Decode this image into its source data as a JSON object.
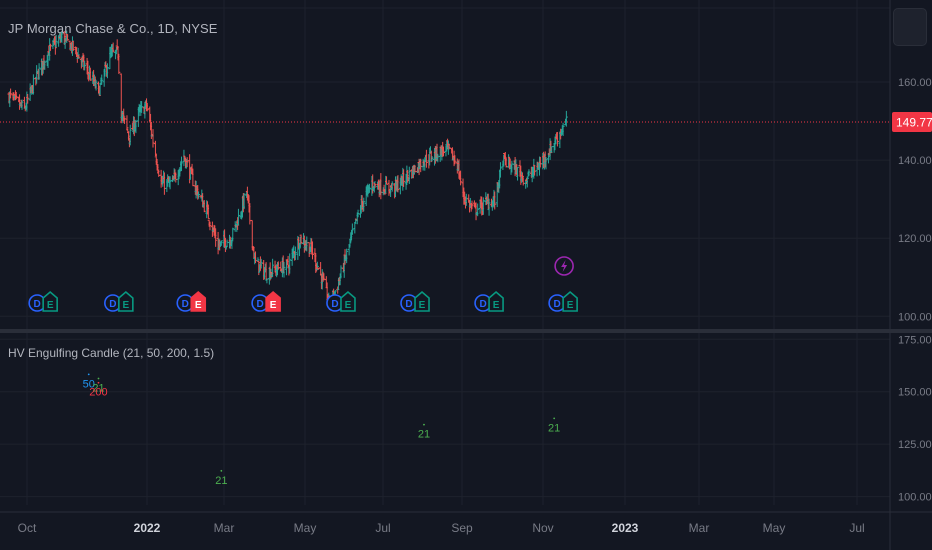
{
  "title": "JP Morgan Chase & Co., 1D, NYSE",
  "indicator_title": "HV Engulfing Candle (21, 50, 200, 1.5)",
  "colors": {
    "bg": "#131722",
    "grid": "#1e222d",
    "up": "#26a69a",
    "down": "#ef5350",
    "price_line": "#f23645",
    "axis_text": "#787b86",
    "earn_blue": "#2962ff",
    "earn_green": "#089981",
    "earn_red": "#f23645",
    "flash": "#9c27b0",
    "sig21": "#4caf50",
    "sig50": "#2196f3",
    "sig200": "#f23645"
  },
  "chart_data": [
    {
      "type": "ohlc",
      "x_axis": {
        "ticks": [
          {
            "label": "Oct",
            "bold": false
          },
          {
            "label": "2022",
            "bold": true
          },
          {
            "label": "Mar",
            "bold": false
          },
          {
            "label": "May",
            "bold": false
          },
          {
            "label": "Jul",
            "bold": false
          },
          {
            "label": "Sep",
            "bold": false
          },
          {
            "label": "Nov",
            "bold": false
          },
          {
            "label": "2023",
            "bold": true
          },
          {
            "label": "Mar",
            "bold": false
          },
          {
            "label": "May",
            "bold": false
          },
          {
            "label": "Jul",
            "bold": false
          }
        ]
      },
      "y_axis": {
        "ticks": [
          "160.00",
          "140.00",
          "120.00",
          "100.00"
        ],
        "range": [
          97,
          181
        ]
      },
      "last_price": "149.77",
      "close_path": [
        [
          "2021-09-01",
          156.5
        ],
        [
          "2021-09-20",
          153
        ],
        [
          "2021-10-05",
          161.5
        ],
        [
          "2021-10-20",
          168
        ],
        [
          "2021-11-05",
          171.5
        ],
        [
          "2021-11-20",
          168.5
        ],
        [
          "2021-12-06",
          163
        ],
        [
          "2021-12-20",
          157.5
        ],
        [
          "2022-01-04",
          167
        ],
        [
          "2022-01-13",
          167.5
        ],
        [
          "2022-01-17",
          152
        ],
        [
          "2022-01-27",
          146
        ],
        [
          "2022-02-08",
          152
        ],
        [
          "2022-02-17",
          154
        ],
        [
          "2022-02-24",
          146
        ],
        [
          "2022-03-07",
          134
        ],
        [
          "2022-03-21",
          134
        ],
        [
          "2022-04-04",
          141
        ],
        [
          "2022-04-18",
          133
        ],
        [
          "2022-05-02",
          127
        ],
        [
          "2022-05-16",
          118
        ],
        [
          "2022-06-01",
          120
        ],
        [
          "2022-06-13",
          127
        ],
        [
          "2022-06-20",
          132
        ],
        [
          "2022-06-30",
          114
        ],
        [
          "2022-07-14",
          111
        ],
        [
          "2022-07-25",
          112
        ],
        [
          "2022-08-10",
          113
        ],
        [
          "2022-08-25",
          120
        ],
        [
          "2022-09-08",
          117
        ],
        [
          "2022-09-20",
          110
        ],
        [
          "2022-09-30",
          103
        ],
        [
          "2022-10-10",
          108
        ],
        [
          "2022-10-24",
          118
        ],
        [
          "2022-11-07",
          128
        ],
        [
          "2022-11-21",
          134
        ],
        [
          "2022-12-05",
          133
        ],
        [
          "2022-12-19",
          133
        ],
        [
          "2023-01-09",
          137
        ],
        [
          "2023-01-23",
          140
        ],
        [
          "2023-02-06",
          141.5
        ],
        [
          "2023-02-21",
          143
        ],
        [
          "2023-03-06",
          139
        ],
        [
          "2023-03-13",
          131
        ],
        [
          "2023-03-27",
          127
        ],
        [
          "2023-04-10",
          129
        ],
        [
          "2023-04-21",
          129.5
        ],
        [
          "2023-05-01",
          140
        ],
        [
          "2023-05-15",
          138
        ],
        [
          "2023-05-29",
          135
        ],
        [
          "2023-06-12",
          138
        ],
        [
          "2023-06-26",
          142
        ],
        [
          "2023-07-07",
          146
        ],
        [
          "2023-07-18",
          149.77
        ]
      ]
    },
    {
      "type": "indicator_markers",
      "title": "HV Engulfing Candle (21, 50, 200, 1.5)",
      "y_axis": {
        "ticks": [
          "175.00",
          "150.00",
          "125.00",
          "100.00"
        ],
        "range": [
          96,
          178
        ]
      },
      "series": [
        {
          "name": "21",
          "color_key": "sig21"
        },
        {
          "name": "50",
          "color_key": "sig50"
        },
        {
          "name": "200",
          "color_key": "sig200"
        }
      ],
      "points": [
        {
          "date": "2021-12-08",
          "value": 154,
          "label": "50",
          "color_key": "sig50"
        },
        {
          "date": "2021-12-20",
          "value": 152,
          "label": "21",
          "color_key": "sig21"
        },
        {
          "date": "2021-12-20",
          "value": 150,
          "label": "200",
          "color_key": "sig200"
        },
        {
          "date": "2022-05-20",
          "value": 108,
          "label": "21",
          "color_key": "sig21"
        },
        {
          "date": "2023-01-24",
          "value": 130,
          "label": "21",
          "color_key": "sig21"
        },
        {
          "date": "2023-07-03",
          "value": 133,
          "label": "21",
          "color_key": "sig21"
        }
      ]
    },
    {
      "type": "event_badges",
      "events": [
        {
          "date": "2021-10-13",
          "d": "blue",
          "e": "green"
        },
        {
          "date": "2022-01-14",
          "d": "blue",
          "e": "green"
        },
        {
          "date": "2022-04-13",
          "d": "blue",
          "e": "red"
        },
        {
          "date": "2022-07-14",
          "d": "blue",
          "e": "red"
        },
        {
          "date": "2022-10-14",
          "d": "blue",
          "e": "green"
        },
        {
          "date": "2023-01-13",
          "d": "blue",
          "e": "green"
        },
        {
          "date": "2023-04-14",
          "d": "blue",
          "e": "green"
        },
        {
          "date": "2023-07-14",
          "d": "blue",
          "e": "green"
        }
      ],
      "flash_date": "2023-07-14"
    }
  ]
}
